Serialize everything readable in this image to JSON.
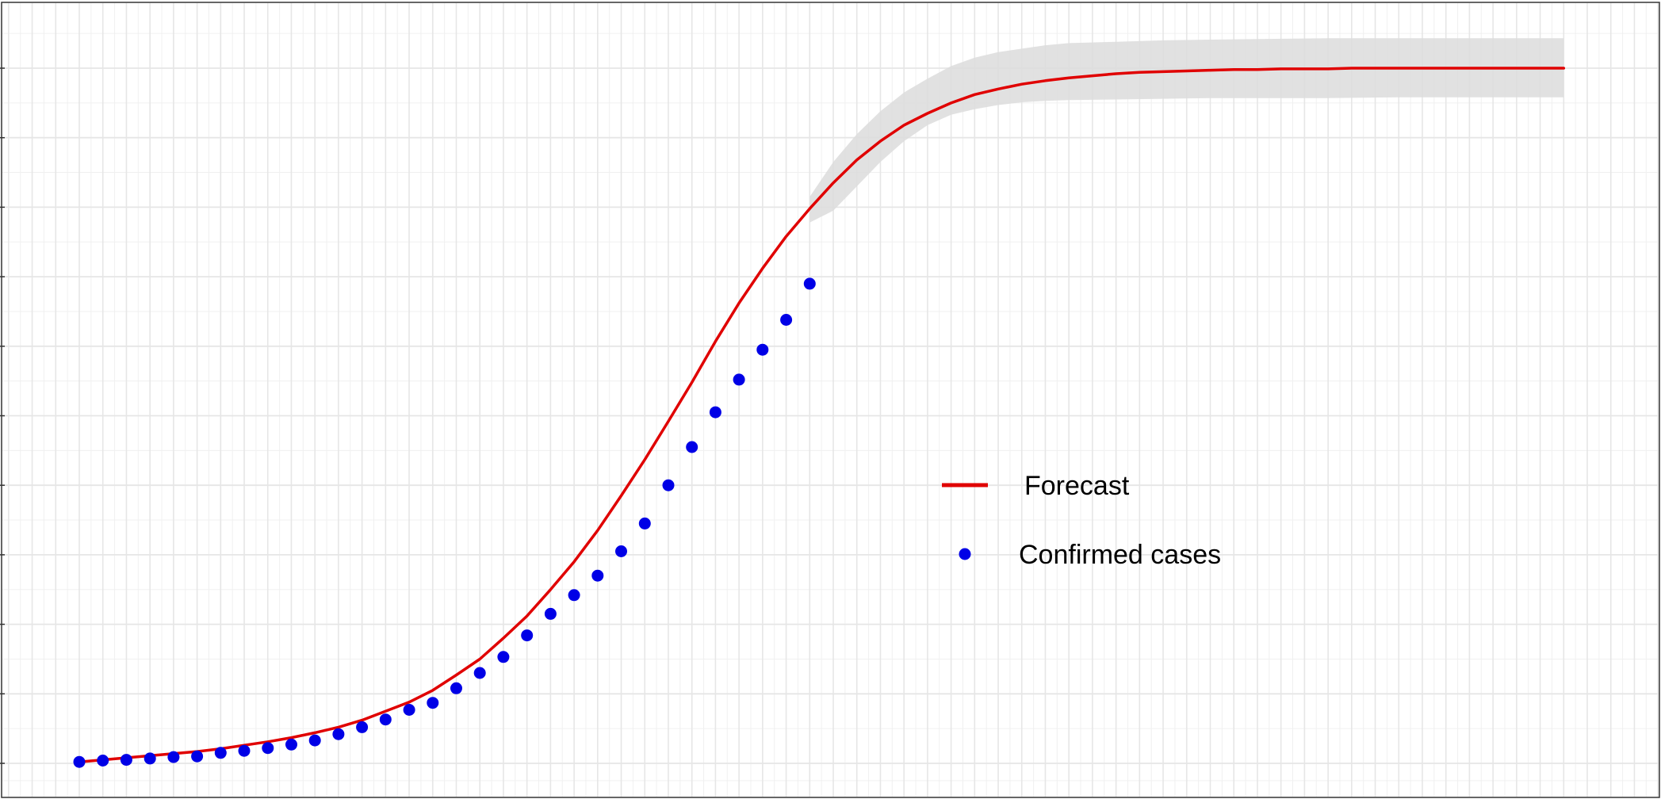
{
  "chart_data": {
    "type": "line",
    "title": "",
    "xlabel": "",
    "ylabel": "",
    "grid": true,
    "legend_position": "center-right",
    "xlim": [
      0,
      64
    ],
    "ylim": [
      -0.5,
      10.5
    ],
    "y_gridlines": [
      0,
      1,
      2,
      3,
      4,
      5,
      6,
      7,
      8,
      9,
      10
    ],
    "legend": {
      "forecast_label": "Forecast",
      "confirmed_label": "Confirmed cases"
    },
    "colors": {
      "forecast": "#e00000",
      "confirmed": "#0000e6",
      "band": "#dcdcdc",
      "grid_major": "#e6e6e6",
      "grid_minor": "#f0f0f0",
      "border": "#333333"
    },
    "series": [
      {
        "name": "Forecast",
        "type": "line",
        "x": [
          0,
          1,
          2,
          3,
          4,
          5,
          6,
          7,
          8,
          9,
          10,
          11,
          12,
          13,
          14,
          15,
          16,
          17,
          18,
          19,
          20,
          21,
          22,
          23,
          24,
          25,
          26,
          27,
          28,
          29,
          30,
          31,
          32,
          33,
          34,
          35,
          36,
          37,
          38,
          39,
          40,
          41,
          42,
          43,
          44,
          45,
          46,
          47,
          48,
          49,
          50,
          51,
          52,
          53,
          54,
          55,
          56,
          57,
          58,
          59,
          60,
          61,
          62,
          63
        ],
        "y": [
          0.02,
          0.05,
          0.08,
          0.11,
          0.14,
          0.17,
          0.21,
          0.26,
          0.31,
          0.37,
          0.44,
          0.52,
          0.62,
          0.75,
          0.88,
          1.05,
          1.27,
          1.5,
          1.8,
          2.12,
          2.5,
          2.9,
          3.35,
          3.85,
          4.37,
          4.92,
          5.48,
          6.07,
          6.62,
          7.12,
          7.58,
          7.98,
          8.35,
          8.68,
          8.95,
          9.18,
          9.35,
          9.5,
          9.62,
          9.7,
          9.77,
          9.82,
          9.86,
          9.89,
          9.92,
          9.94,
          9.95,
          9.96,
          9.97,
          9.98,
          9.98,
          9.99,
          9.99,
          9.99,
          10.0,
          10.0,
          10.0,
          10.0,
          10.0,
          10.0,
          10.0,
          10.0,
          10.0,
          10.0
        ]
      },
      {
        "name": "Forecast band upper",
        "type": "band",
        "x": [
          31,
          32,
          33,
          34,
          35,
          36,
          37,
          38,
          39,
          40,
          41,
          42,
          44,
          46,
          48,
          50,
          53,
          56,
          60,
          63
        ],
        "y": [
          8.15,
          8.65,
          9.05,
          9.38,
          9.65,
          9.85,
          10.03,
          10.15,
          10.23,
          10.28,
          10.33,
          10.36,
          10.38,
          10.4,
          10.41,
          10.42,
          10.43,
          10.43,
          10.43,
          10.43
        ]
      },
      {
        "name": "Forecast band lower",
        "type": "band",
        "x": [
          31,
          32,
          33,
          34,
          35,
          36,
          37,
          38,
          39,
          40,
          41,
          42,
          44,
          46,
          48,
          50,
          53,
          56,
          60,
          63
        ],
        "y": [
          7.78,
          7.95,
          8.3,
          8.65,
          8.95,
          9.18,
          9.33,
          9.41,
          9.47,
          9.51,
          9.53,
          9.54,
          9.55,
          9.56,
          9.57,
          9.57,
          9.57,
          9.58,
          9.58,
          9.58
        ]
      },
      {
        "name": "Confirmed cases",
        "type": "scatter",
        "x": [
          0,
          1,
          2,
          3,
          4,
          5,
          6,
          7,
          8,
          9,
          10,
          11,
          12,
          13,
          14,
          15,
          16,
          17,
          18,
          19,
          20,
          21,
          22,
          23,
          24,
          25,
          26,
          27,
          28,
          29,
          30,
          31
        ],
        "y": [
          0.02,
          0.04,
          0.05,
          0.07,
          0.09,
          0.1,
          0.15,
          0.18,
          0.22,
          0.27,
          0.33,
          0.42,
          0.52,
          0.63,
          0.77,
          0.87,
          1.08,
          1.3,
          1.53,
          1.84,
          2.15,
          2.42,
          2.7,
          3.05,
          3.45,
          4.0,
          4.55,
          5.05,
          5.52,
          5.95,
          6.38,
          6.9
        ]
      }
    ]
  }
}
